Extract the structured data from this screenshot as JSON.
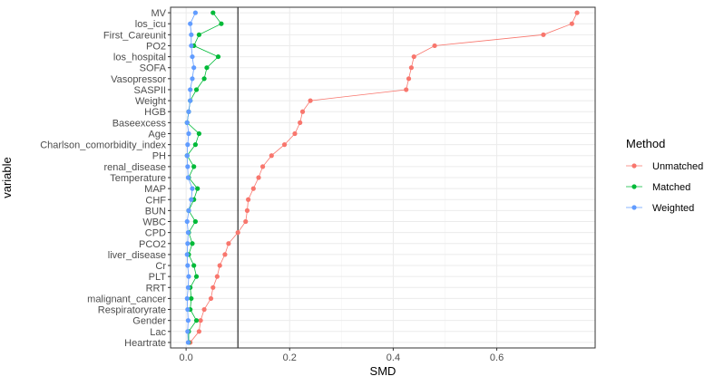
{
  "chart_data": {
    "type": "line",
    "title": "",
    "xlabel": "SMD",
    "ylabel": "variable",
    "xlim": [
      -0.03,
      0.79
    ],
    "x_ticks": [
      0.0,
      0.2,
      0.4,
      0.6
    ],
    "x_tick_labels": [
      "0.0",
      "0.2",
      "0.4",
      "0.6"
    ],
    "reference_line_x": 0.1,
    "grid": true,
    "legend_title": "Method",
    "legend_position": "right",
    "categories": [
      "MV",
      "los_icu",
      "First_Careunit",
      "PO2",
      "los_hospital",
      "SOFA",
      "Vasopressor",
      "SASPII",
      "Weight",
      "HGB",
      "Baseexcess",
      "Age",
      "Charlson_comorbidity_index",
      "PH",
      "renal_disease",
      "Temperature",
      "MAP",
      "CHF",
      "BUN",
      "WBC",
      "CPD",
      "PCO2",
      "liver_disease",
      "Cr",
      "PLT",
      "RRT",
      "malignant_cancer",
      "Respiratoryrate",
      "Gender",
      "Lac",
      "Heartrate"
    ],
    "series": [
      {
        "name": "Unmatched",
        "color": "#F8766D",
        "values": [
          0.755,
          0.745,
          0.69,
          0.48,
          0.44,
          0.435,
          0.43,
          0.425,
          0.24,
          0.225,
          0.22,
          0.21,
          0.19,
          0.165,
          0.148,
          0.14,
          0.13,
          0.12,
          0.118,
          0.115,
          0.1,
          0.082,
          0.075,
          0.065,
          0.06,
          0.052,
          0.048,
          0.035,
          0.028,
          0.025,
          0.008
        ]
      },
      {
        "name": "Matched",
        "color": "#00BA38",
        "values": [
          0.052,
          0.068,
          0.025,
          0.015,
          0.062,
          0.04,
          0.035,
          0.02,
          0.008,
          0.005,
          0.002,
          0.025,
          0.018,
          0.002,
          0.015,
          0.005,
          0.022,
          0.015,
          0.005,
          0.018,
          0.005,
          0.012,
          0.005,
          0.015,
          0.02,
          0.008,
          0.01,
          0.008,
          0.02,
          0.005,
          0.005
        ]
      },
      {
        "name": "Weighted",
        "color": "#619CFF",
        "values": [
          0.018,
          0.008,
          0.01,
          0.01,
          0.012,
          0.015,
          0.012,
          0.008,
          0.008,
          0.005,
          0.002,
          0.005,
          0.003,
          0.002,
          0.003,
          0.004,
          0.012,
          0.01,
          0.005,
          0.002,
          0.004,
          0.003,
          0.002,
          0.003,
          0.005,
          0.004,
          0.002,
          0.003,
          0.004,
          0.003,
          0.004
        ]
      }
    ]
  }
}
